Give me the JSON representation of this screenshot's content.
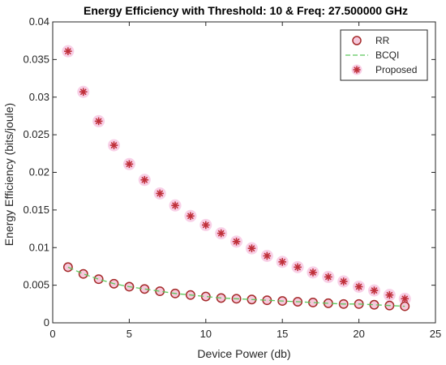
{
  "chart_data": {
    "type": "scatter",
    "title": "Energy Efficiency with Threshold: 10 & Freq: 27.500000 GHz",
    "xlabel": "Device Power (db)",
    "ylabel": "Energy Efficiency (bits/joule)",
    "xlim": [
      0,
      25
    ],
    "ylim": [
      0,
      0.04
    ],
    "xticks": [
      0,
      5,
      10,
      15,
      20,
      25
    ],
    "xtick_labels": [
      "0",
      "5",
      "10",
      "15",
      "20",
      "25"
    ],
    "yticks": [
      0,
      0.005,
      0.01,
      0.015,
      0.02,
      0.025,
      0.03,
      0.035,
      0.04
    ],
    "ytick_labels": [
      "0",
      "0.005",
      "0.01",
      "0.015",
      "0.02",
      "0.025",
      "0.03",
      "0.035",
      "0.04"
    ],
    "grid": false,
    "legend_position": "top-right",
    "x": [
      1,
      2,
      3,
      4,
      5,
      6,
      7,
      8,
      9,
      10,
      11,
      12,
      13,
      14,
      15,
      16,
      17,
      18,
      19,
      20,
      21,
      22,
      23
    ],
    "series": [
      {
        "name": "RR",
        "marker": "circle",
        "color": "#a52a2a",
        "values": [
          0.0074,
          0.0065,
          0.0058,
          0.0052,
          0.0048,
          0.0045,
          0.0042,
          0.0039,
          0.0037,
          0.0035,
          0.0033,
          0.0032,
          0.0031,
          0.003,
          0.0029,
          0.0028,
          0.0027,
          0.0026,
          0.0025,
          0.0025,
          0.0024,
          0.0023,
          0.0022
        ]
      },
      {
        "name": "BCQI",
        "marker": "dashed-line",
        "color": "#5ac85a",
        "values": [
          0.0074,
          0.0065,
          0.0058,
          0.0052,
          0.0048,
          0.0045,
          0.0042,
          0.0039,
          0.0037,
          0.0035,
          0.0033,
          0.0032,
          0.0031,
          0.003,
          0.0029,
          0.0028,
          0.0027,
          0.0026,
          0.0025,
          0.0025,
          0.0024,
          0.0023,
          0.0022
        ]
      },
      {
        "name": "Proposed",
        "marker": "asterisk",
        "color": "#e60000",
        "values": [
          0.0361,
          0.0307,
          0.0268,
          0.0236,
          0.0211,
          0.019,
          0.0172,
          0.0156,
          0.0142,
          0.013,
          0.0119,
          0.0108,
          0.0099,
          0.0089,
          0.0081,
          0.0074,
          0.0067,
          0.0061,
          0.0055,
          0.0048,
          0.0043,
          0.0037,
          0.0032
        ]
      }
    ]
  }
}
